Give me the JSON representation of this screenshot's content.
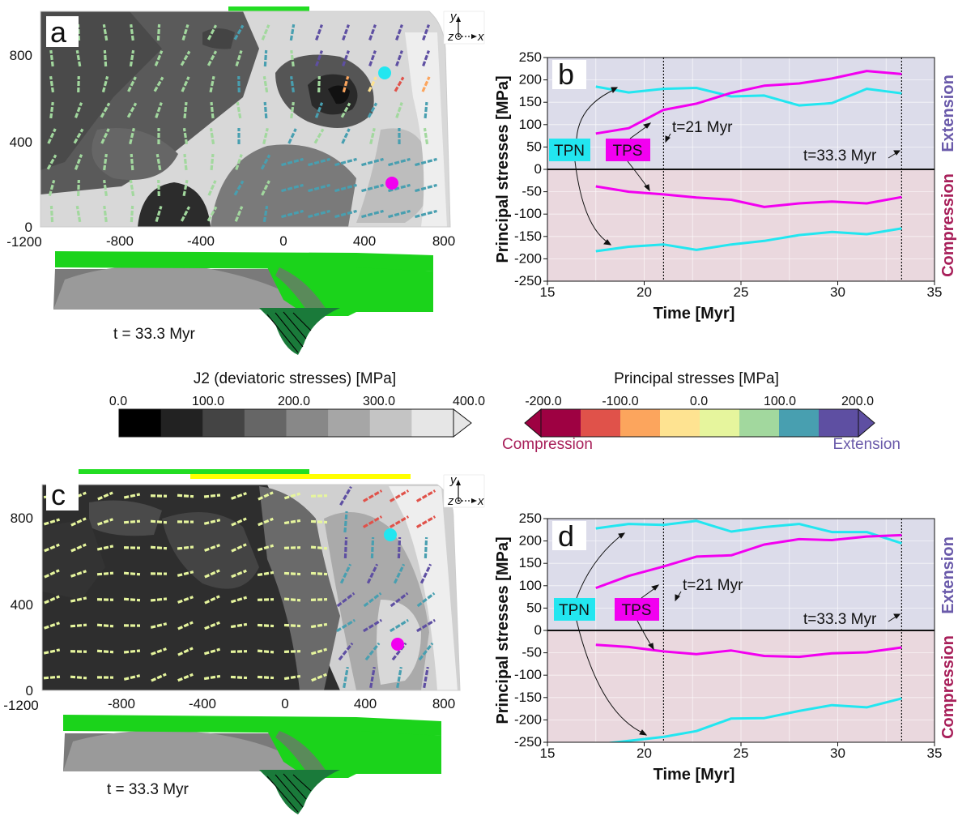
{
  "panels": {
    "a": {
      "letter": "a",
      "time_label": "t = 33.3 Myr"
    },
    "c": {
      "letter": "c",
      "time_label": "t = 33.3 Myr"
    },
    "map_xticks": [
      "-1200",
      "-800",
      "-400",
      "0",
      "400",
      "800"
    ],
    "map_yticks": [
      "0",
      "400",
      "800"
    ],
    "axes_icon": {
      "x": "x",
      "y": "y",
      "z": "z"
    }
  },
  "colorbars": {
    "j2": {
      "title": "J2 (deviatoric stresses) [MPa]",
      "ticks": [
        "0.0",
        "100.0",
        "200.0",
        "300.0",
        "400.0"
      ],
      "colors": [
        "#000000",
        "#222222",
        "#444444",
        "#666666",
        "#888888",
        "#a6a6a6",
        "#c4c4c4",
        "#e6e6e6"
      ]
    },
    "principal": {
      "title": "Principal stresses [MPa]",
      "ticks": [
        "-200.0",
        "-100.0",
        "0.0",
        "100.0",
        "200.0"
      ],
      "colors": [
        "#9e0142",
        "#e0524a",
        "#fca55d",
        "#fee391",
        "#e6f59d",
        "#a2d89e",
        "#489fb0",
        "#5e4fa2"
      ],
      "left_label": "Compression",
      "right_label": "Extension",
      "left_color": "#a8205a",
      "right_color": "#6a5aaa"
    }
  },
  "chart_data": [
    {
      "panel": "b",
      "type": "line",
      "xlabel": "Time [Myr]",
      "ylabel": "Principal stresses [MPa]",
      "xlim": [
        15,
        35
      ],
      "ylim": [
        -250,
        250
      ],
      "xticks": [
        "15",
        "20",
        "25",
        "30",
        "35"
      ],
      "yticks": [
        "250",
        "200",
        "150",
        "100",
        "50",
        "0",
        "-50",
        "-100",
        "-150",
        "-200",
        "-250"
      ],
      "grid": true,
      "regions": {
        "upper": "Extension",
        "lower": "Compression"
      },
      "vlines": [
        21,
        33.3
      ],
      "annotations": [
        "t=21 Myr",
        "t=33.3 Myr"
      ],
      "labels": {
        "tpn": "TPN",
        "tps": "TPS"
      },
      "x": [
        17.5,
        19.2,
        21.0,
        22.7,
        24.5,
        26.2,
        28.0,
        29.7,
        31.5,
        33.3
      ],
      "series": [
        {
          "name": "TPN",
          "color": "#22e6f0",
          "values": [
            185,
            172,
            180,
            182,
            163,
            165,
            143,
            148,
            180,
            170
          ]
        },
        {
          "name": "TPN",
          "color": "#22e6f0",
          "values": [
            -183,
            -173,
            -168,
            -180,
            -168,
            -160,
            -147,
            -140,
            -145,
            -132
          ]
        },
        {
          "name": "TPS",
          "color": "#f200f0",
          "values": [
            80,
            92,
            133,
            147,
            171,
            187,
            192,
            203,
            220,
            213
          ]
        },
        {
          "name": "TPS",
          "color": "#f200f0",
          "values": [
            -38,
            -50,
            -56,
            -63,
            -68,
            -84,
            -76,
            -72,
            -76,
            -62
          ]
        }
      ]
    },
    {
      "panel": "d",
      "type": "line",
      "xlabel": "Time [Myr]",
      "ylabel": "Principal stresses [MPa]",
      "xlim": [
        15,
        35
      ],
      "ylim": [
        -250,
        250
      ],
      "xticks": [
        "15",
        "20",
        "25",
        "30",
        "35"
      ],
      "yticks": [
        "250",
        "200",
        "150",
        "100",
        "50",
        "0",
        "-50",
        "-100",
        "-150",
        "-200",
        "-250"
      ],
      "grid": true,
      "regions": {
        "upper": "Extension",
        "lower": "Compression"
      },
      "vlines": [
        21,
        33.3
      ],
      "annotations": [
        "t=21 Myr",
        "t=33.3 Myr"
      ],
      "labels": {
        "tpn": "TPN",
        "tps": "TPS"
      },
      "x": [
        17.5,
        19.2,
        21.0,
        22.7,
        24.5,
        26.2,
        28.0,
        29.7,
        31.5,
        33.3
      ],
      "series": [
        {
          "name": "TPN",
          "color": "#22e6f0",
          "values": [
            228,
            238,
            236,
            245,
            221,
            231,
            238,
            220,
            220,
            195
          ]
        },
        {
          "name": "TPN",
          "color": "#22e6f0",
          "values": [
            -255,
            -247,
            -238,
            -225,
            -197,
            -196,
            -180,
            -167,
            -172,
            -152
          ]
        },
        {
          "name": "TPS",
          "color": "#f200f0",
          "values": [
            95,
            122,
            143,
            165,
            168,
            192,
            204,
            202,
            210,
            213
          ]
        },
        {
          "name": "TPS",
          "color": "#f200f0",
          "values": [
            -32,
            -37,
            -47,
            -53,
            -45,
            -57,
            -59,
            -51,
            -49,
            -38
          ]
        }
      ]
    }
  ]
}
